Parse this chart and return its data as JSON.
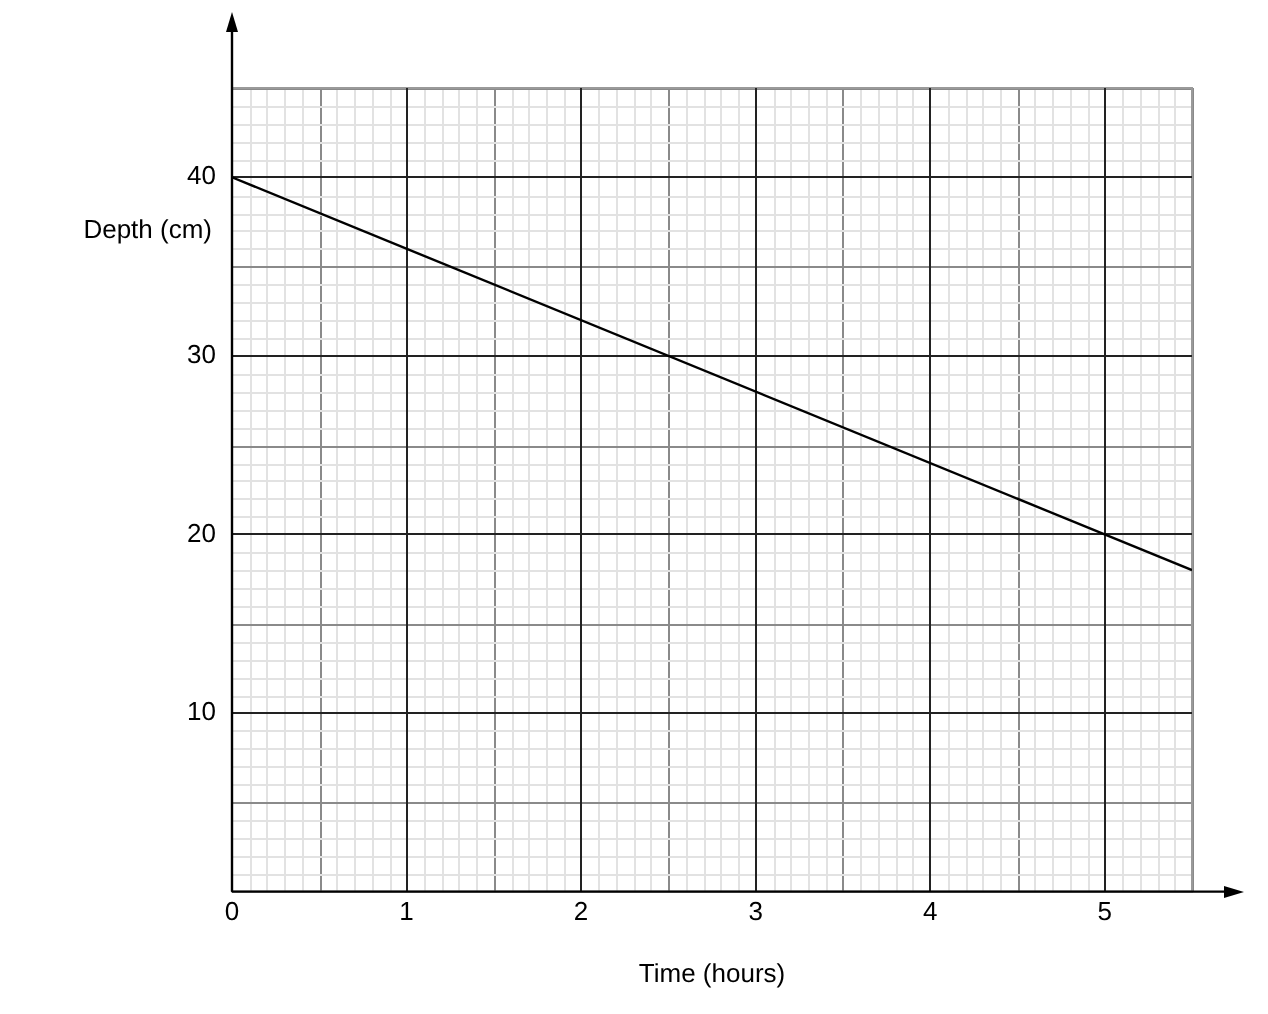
{
  "chart_data": {
    "type": "line",
    "xlabel": "Time (hours)",
    "ylabel": "Depth (cm)",
    "x": [
      0,
      5.5
    ],
    "series": [
      {
        "color": "#000000",
        "values": [
          40,
          18
        ]
      }
    ],
    "xlim": [
      0,
      5.5
    ],
    "ylim": [
      0,
      45
    ],
    "xticks": [
      0,
      1,
      2,
      3,
      4,
      5
    ],
    "yticks": [
      10,
      20,
      30,
      40
    ],
    "grid": true,
    "legend": false,
    "marker": "none",
    "line_style": "solid"
  }
}
